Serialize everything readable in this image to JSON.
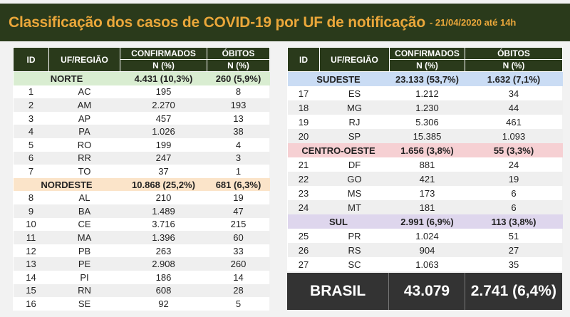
{
  "header": {
    "title": "Classificação dos casos de COVID-19 por UF de notificação",
    "subtitle": "- 21/04/2020 até 14h"
  },
  "columns": {
    "id": "ID",
    "uf": "UF/REGIÃO",
    "confirmed": "CONFIRMADOS",
    "deaths": "ÓBITOS",
    "sub": "N (%)"
  },
  "colors": {
    "norte": "#d9edd1",
    "nordeste": "#fbe4c9",
    "sudeste": "#cadcf4",
    "centro_oeste": "#f6d0d3",
    "sul": "#ded6ed",
    "header": "#2a3a1b",
    "title": "#eaa73a"
  },
  "left_table": [
    {
      "region": "NORTE",
      "confirmed": "4.431 (10,3%)",
      "deaths": "260 (5,9%)",
      "color": "#d9edd1",
      "rows": [
        [
          "1",
          "AC",
          "195",
          "8"
        ],
        [
          "2",
          "AM",
          "2.270",
          "193"
        ],
        [
          "3",
          "AP",
          "457",
          "13"
        ],
        [
          "4",
          "PA",
          "1.026",
          "38"
        ],
        [
          "5",
          "RO",
          "199",
          "4"
        ],
        [
          "6",
          "RR",
          "247",
          "3"
        ],
        [
          "7",
          "TO",
          "37",
          "1"
        ]
      ]
    },
    {
      "region": "NORDESTE",
      "confirmed": "10.868 (25,2%)",
      "deaths": "681 (6,3%)",
      "color": "#fbe4c9",
      "rows": [
        [
          "8",
          "AL",
          "210",
          "19"
        ],
        [
          "9",
          "BA",
          "1.489",
          "47"
        ],
        [
          "10",
          "CE",
          "3.716",
          "215"
        ],
        [
          "11",
          "MA",
          "1.396",
          "60"
        ],
        [
          "12",
          "PB",
          "263",
          "33"
        ],
        [
          "13",
          "PE",
          "2.908",
          "260"
        ],
        [
          "14",
          "PI",
          "186",
          "14"
        ],
        [
          "15",
          "RN",
          "608",
          "28"
        ],
        [
          "16",
          "SE",
          "92",
          "5"
        ]
      ]
    }
  ],
  "right_table": [
    {
      "region": "SUDESTE",
      "confirmed": "23.133 (53,7%)",
      "deaths": "1.632 (7,1%)",
      "color": "#cadcf4",
      "rows": [
        [
          "17",
          "ES",
          "1.212",
          "34"
        ],
        [
          "18",
          "MG",
          "1.230",
          "44"
        ],
        [
          "19",
          "RJ",
          "5.306",
          "461"
        ],
        [
          "20",
          "SP",
          "15.385",
          "1.093"
        ]
      ]
    },
    {
      "region": "CENTRO-OESTE",
      "confirmed": "1.656 (3,8%)",
      "deaths": "55 (3,3%)",
      "color": "#f6d0d3",
      "rows": [
        [
          "21",
          "DF",
          "881",
          "24"
        ],
        [
          "22",
          "GO",
          "421",
          "19"
        ],
        [
          "23",
          "MS",
          "173",
          "6"
        ],
        [
          "24",
          "MT",
          "181",
          "6"
        ]
      ]
    },
    {
      "region": "SUL",
      "confirmed": "2.991 (6,9%)",
      "deaths": "113 (3,8%)",
      "color": "#ded6ed",
      "rows": [
        [
          "25",
          "PR",
          "1.024",
          "51"
        ],
        [
          "26",
          "RS",
          "904",
          "27"
        ],
        [
          "27",
          "SC",
          "1.063",
          "35"
        ]
      ]
    }
  ],
  "total": {
    "label": "BRASIL",
    "confirmed": "43.079",
    "deaths": "2.741 (6,4%)"
  }
}
